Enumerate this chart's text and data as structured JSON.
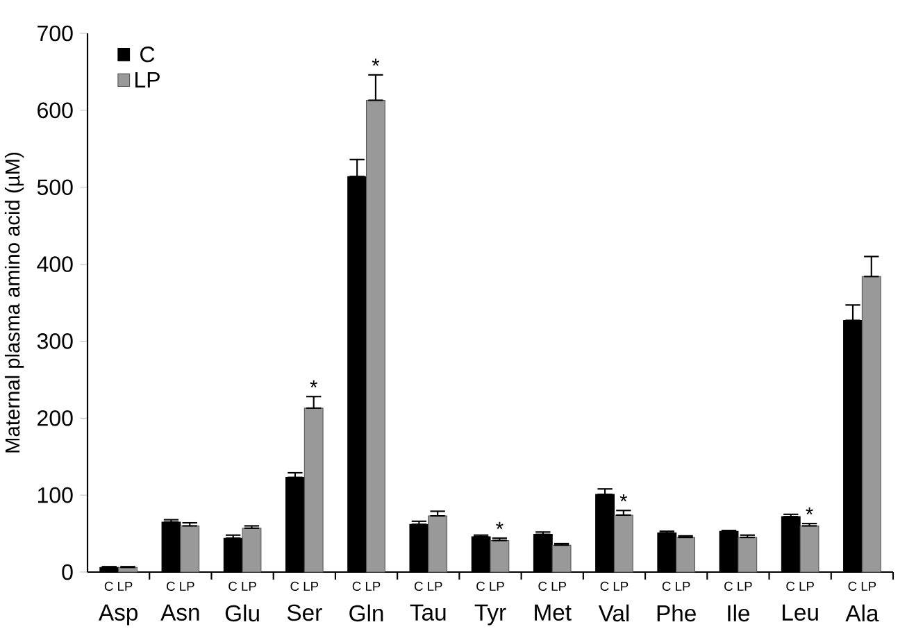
{
  "chart_data": {
    "type": "bar",
    "ylabel": "Maternal plasma amino acid (µM)",
    "categories": [
      "Asp",
      "Asn",
      "Glu",
      "Ser",
      "Gln",
      "Tau",
      "Tyr",
      "Met",
      "Val",
      "Phe",
      "Ile",
      "Leu",
      "Ala"
    ],
    "series": [
      {
        "name": "C",
        "color": "#000000",
        "values": [
          6,
          65,
          44,
          123,
          514,
          62,
          46,
          49,
          101,
          51,
          53,
          72,
          327
        ],
        "errors": [
          [
            6,
            7
          ],
          [
            65,
            68
          ],
          [
            44,
            48
          ],
          [
            123,
            129
          ],
          [
            514,
            536
          ],
          [
            62,
            66
          ],
          [
            46,
            48
          ],
          [
            49,
            52
          ],
          [
            101,
            108
          ],
          [
            51,
            53
          ],
          [
            53,
            54
          ],
          [
            72,
            75
          ],
          [
            327,
            347
          ]
        ]
      },
      {
        "name": "LP",
        "color": "#999999",
        "values": [
          6,
          60,
          57,
          213,
          613,
          73,
          41,
          35,
          74,
          45,
          45,
          60,
          384
        ],
        "errors": [
          [
            6,
            7
          ],
          [
            60,
            64
          ],
          [
            57,
            60
          ],
          [
            213,
            228
          ],
          [
            613,
            646
          ],
          [
            73,
            79
          ],
          [
            41,
            44
          ],
          [
            35,
            37
          ],
          [
            74,
            80
          ],
          [
            45,
            47
          ],
          [
            45,
            48
          ],
          [
            60,
            63
          ],
          [
            384,
            410
          ]
        ]
      }
    ],
    "ylim": [
      0,
      700
    ],
    "yticks": [
      0,
      100,
      200,
      300,
      400,
      500,
      600,
      700
    ],
    "legend": "top left",
    "grid": false,
    "annotations": [
      {
        "text": "*",
        "x": "Ser",
        "y": 228
      },
      {
        "text": "*",
        "x": "Gln",
        "y": 646
      },
      {
        "text": "*",
        "x": "Tyr",
        "y": 44
      },
      {
        "text": "*",
        "x": "Val",
        "y": 80
      },
      {
        "text": "*",
        "x": "Leu",
        "y": 63
      },
      "C LP",
      "C LP",
      "C LP",
      "C LP",
      "C LP",
      "C LP",
      "C LP",
      "C LP",
      "C LP",
      "C LP",
      "C LP",
      "C LP",
      "C LP"
    ]
  }
}
